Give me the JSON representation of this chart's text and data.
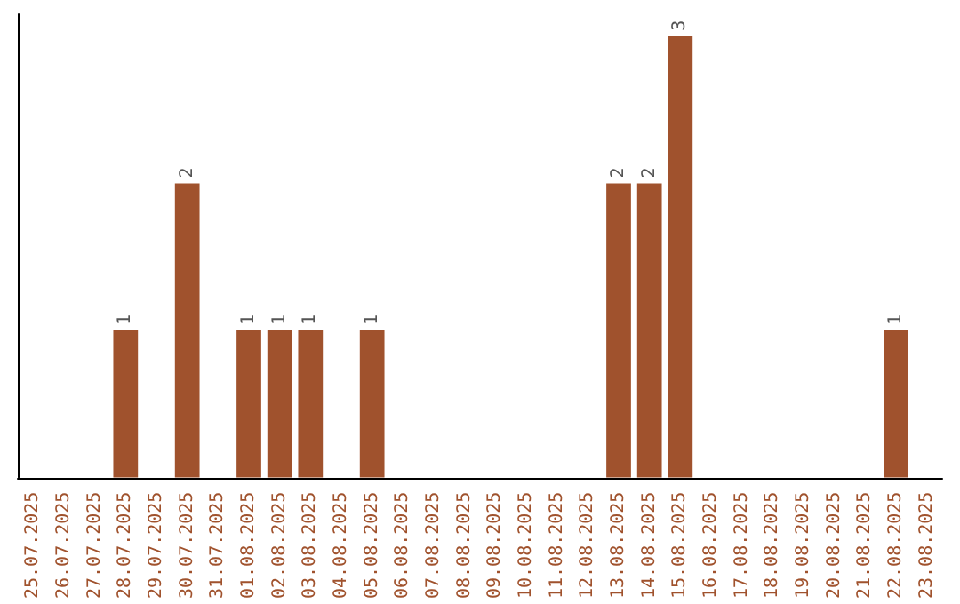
{
  "chart_data": {
    "type": "bar",
    "categories": [
      "25.07.2025",
      "26.07.2025",
      "27.07.2025",
      "28.07.2025",
      "29.07.2025",
      "30.07.2025",
      "31.07.2025",
      "01.08.2025",
      "02.08.2025",
      "03.08.2025",
      "04.08.2025",
      "05.08.2025",
      "06.08.2025",
      "07.08.2025",
      "08.08.2025",
      "09.08.2025",
      "10.08.2025",
      "11.08.2025",
      "12.08.2025",
      "13.08.2025",
      "14.08.2025",
      "15.08.2025",
      "16.08.2025",
      "17.08.2025",
      "18.08.2025",
      "19.08.2025",
      "20.08.2025",
      "21.08.2025",
      "22.08.2025",
      "23.08.2025"
    ],
    "values": [
      0,
      0,
      0,
      1,
      0,
      2,
      0,
      1,
      1,
      1,
      0,
      1,
      0,
      0,
      0,
      0,
      0,
      0,
      0,
      2,
      2,
      3,
      0,
      0,
      0,
      0,
      0,
      0,
      1,
      0
    ],
    "value_labels": [
      null,
      null,
      null,
      "1",
      null,
      "2",
      null,
      "1",
      "1",
      "1",
      null,
      "1",
      null,
      null,
      null,
      null,
      null,
      null,
      null,
      "2",
      "2",
      "3",
      null,
      null,
      null,
      null,
      null,
      null,
      "1",
      null
    ],
    "color": "#a0522d",
    "tick_labels": "x"
  }
}
